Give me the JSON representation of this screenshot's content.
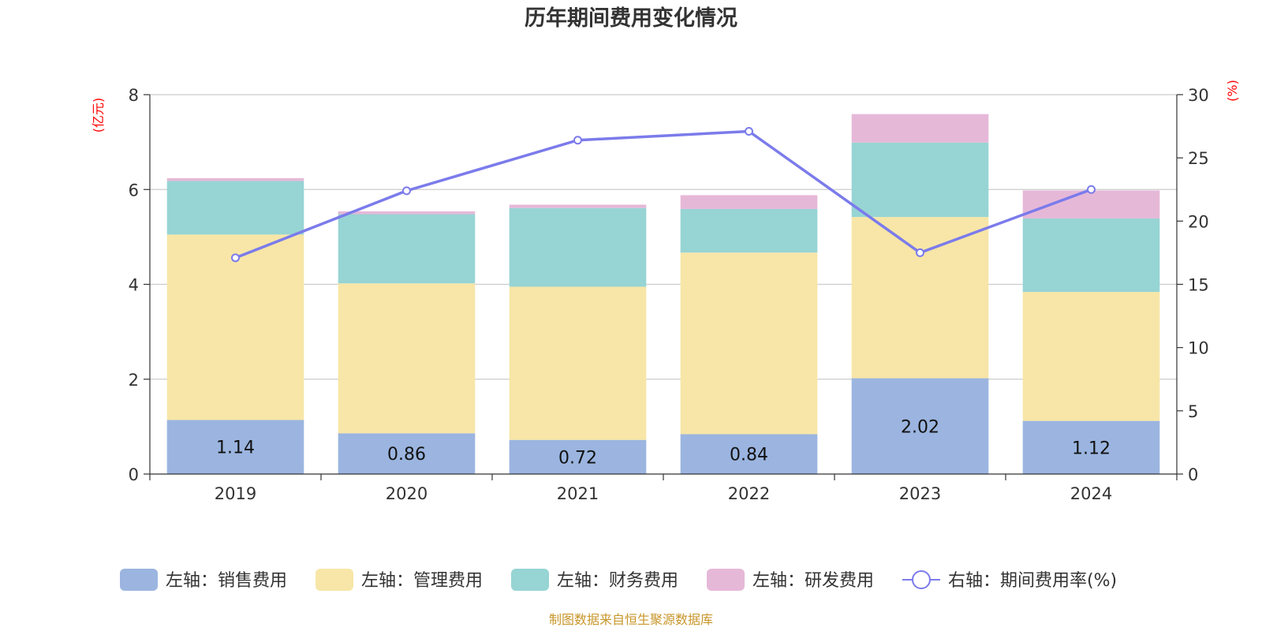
{
  "chart_data": {
    "type": "bar",
    "stacked": true,
    "title": "历年期间费用变化情况",
    "categories": [
      "2019",
      "2020",
      "2021",
      "2022",
      "2023",
      "2024"
    ],
    "left_axis": {
      "unit": "(亿元)",
      "ylim": [
        0,
        8
      ],
      "ticks": [
        0,
        2,
        4,
        6,
        8
      ]
    },
    "right_axis": {
      "unit": "(%)",
      "ylim": [
        0,
        30
      ],
      "ticks": [
        0,
        5,
        10,
        15,
        20,
        25,
        30
      ]
    },
    "series": [
      {
        "name": "左轴：销售费用",
        "axis": "left",
        "color": "#9bb5e0",
        "values": [
          1.14,
          0.86,
          0.72,
          0.84,
          2.02,
          1.12
        ],
        "show_labels": true
      },
      {
        "name": "左轴：管理费用",
        "axis": "left",
        "color": "#f7e6a7",
        "values": [
          3.91,
          3.16,
          3.23,
          3.83,
          3.4,
          2.72
        ]
      },
      {
        "name": "左轴：财务费用",
        "axis": "left",
        "color": "#97d4d4",
        "values": [
          1.13,
          1.46,
          1.66,
          0.92,
          1.57,
          1.55
        ]
      },
      {
        "name": "左轴：研发费用",
        "axis": "left",
        "color": "#e6b8d8",
        "values": [
          0.06,
          0.06,
          0.07,
          0.29,
          0.6,
          0.59
        ]
      }
    ],
    "line_series": {
      "name": "右轴：期间费用率(%)",
      "axis": "right",
      "color": "#7b7beb",
      "values": [
        17.1,
        22.4,
        26.4,
        27.1,
        17.5,
        22.5
      ]
    }
  },
  "source": "制图数据来自恒生聚源数据库"
}
